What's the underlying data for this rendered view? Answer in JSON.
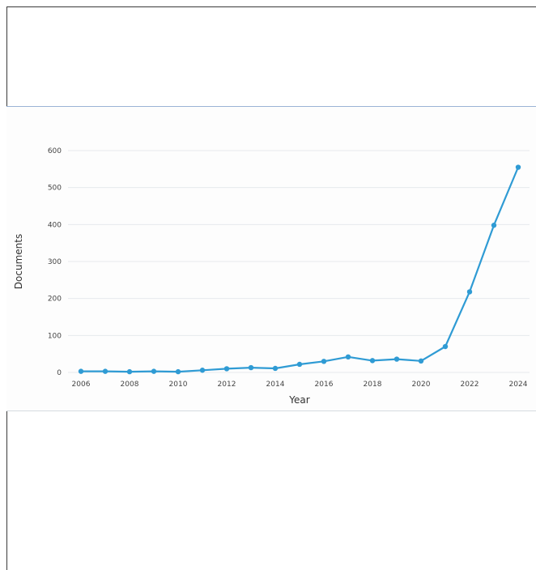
{
  "chart_data": {
    "type": "line",
    "title": "",
    "xlabel": "Year",
    "ylabel": "Documents",
    "x": [
      2006,
      2007,
      2008,
      2009,
      2010,
      2011,
      2012,
      2013,
      2014,
      2015,
      2016,
      2017,
      2018,
      2019,
      2020,
      2021,
      2022,
      2023,
      2024
    ],
    "series": [
      {
        "values": [
          3,
          3,
          2,
          3,
          2,
          6,
          10,
          13,
          11,
          22,
          30,
          42,
          32,
          36,
          31,
          70,
          218,
          398,
          555
        ]
      }
    ],
    "xlim": [
      2006,
      2024
    ],
    "ylim": [
      0,
      600
    ],
    "x_ticks": [
      "2006",
      "2008",
      "2010",
      "2012",
      "2014",
      "2016",
      "2018",
      "2020",
      "2022",
      "2024"
    ],
    "y_ticks": [
      "0",
      "100",
      "200",
      "300",
      "400",
      "500",
      "600"
    ],
    "grid": true,
    "line_color": "#2f9bd4",
    "grid_color": "#e6e9ed"
  }
}
